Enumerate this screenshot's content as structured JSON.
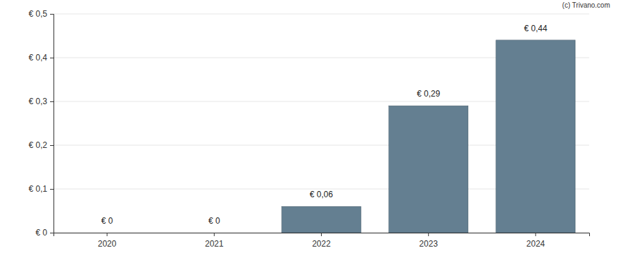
{
  "chart_data": {
    "type": "bar",
    "annotations": [
      "(c) Trivano.com"
    ],
    "categories": [
      "2020",
      "2021",
      "2022",
      "2023",
      "2024"
    ],
    "values": [
      0,
      0,
      0.06,
      0.29,
      0.44
    ],
    "value_labels": [
      "€ 0",
      "€ 0",
      "€ 0,06",
      "€ 0,29",
      "€ 0,44"
    ],
    "data_labels": true,
    "color": "#647f91",
    "ylim": [
      0,
      0.5
    ],
    "yticks": [
      {
        "value": 0,
        "label": "€ 0"
      },
      {
        "value": 0.1,
        "label": "€ 0,1"
      },
      {
        "value": 0.2,
        "label": "€ 0,2"
      },
      {
        "value": 0.3,
        "label": "€ 0,3"
      },
      {
        "value": 0.4,
        "label": "€ 0,4"
      },
      {
        "value": 0.5,
        "label": "€ 0,5"
      }
    ],
    "grid": true
  }
}
